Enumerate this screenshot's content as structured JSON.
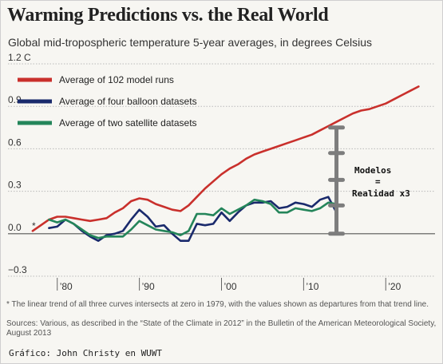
{
  "title": "Warming Predictions vs. the Real World",
  "subtitle": "Global mid-tropospheric temperature 5-year averages, in degrees Celsius",
  "footnote": "* The linear trend of all three curves intersects at zero in 1979, with the values shown as departures from that trend line.",
  "sources": "Sources: Various, as described in the “State of the Climate in 2012” in the Bulletin of the American Meteorological Society, August 2013",
  "credit": "Gráfico: John Christy en WUWT",
  "annotation": {
    "line1": "Modelos",
    "line2": "=",
    "line3": "Realidad x3",
    "marker": "*"
  },
  "colors": {
    "models": "#c9302c",
    "balloons": "#1a2a6c",
    "satellites": "#24855a",
    "bracket": "#7d7d7d"
  },
  "chart_data": {
    "type": "line",
    "title": "Warming Predictions vs. the Real World",
    "ylim": [
      -0.3,
      1.2
    ],
    "xlim": [
      1974,
      2026
    ],
    "ytick_values": [
      -0.3,
      0.0,
      0.3,
      0.6,
      0.9,
      1.2
    ],
    "ytick_labels": [
      "−0.3",
      "0.0",
      "0.3",
      "0.6",
      "0.9",
      "1.2 C"
    ],
    "xtick_values": [
      1980,
      1990,
      2000,
      2010,
      2020
    ],
    "xtick_labels": [
      "’80",
      "’90",
      "’00",
      "’10",
      "’20"
    ],
    "series": [
      {
        "name": "Average of 102 model runs",
        "color": "#c9302c",
        "x": [
          1977,
          1978,
          1979,
          1980,
          1981,
          1982,
          1983,
          1984,
          1985,
          1986,
          1987,
          1988,
          1989,
          1990,
          1991,
          1992,
          1993,
          1994,
          1995,
          1996,
          1997,
          1998,
          1999,
          2000,
          2001,
          2002,
          2003,
          2004,
          2005,
          2006,
          2007,
          2008,
          2009,
          2010,
          2011,
          2012,
          2013,
          2014,
          2015,
          2016,
          2017,
          2018,
          2019,
          2020,
          2021,
          2022,
          2023,
          2024
        ],
        "y": [
          0.02,
          0.06,
          0.1,
          0.12,
          0.12,
          0.11,
          0.1,
          0.09,
          0.1,
          0.11,
          0.15,
          0.18,
          0.23,
          0.25,
          0.24,
          0.21,
          0.19,
          0.17,
          0.16,
          0.2,
          0.26,
          0.32,
          0.37,
          0.42,
          0.46,
          0.49,
          0.53,
          0.56,
          0.58,
          0.6,
          0.62,
          0.64,
          0.66,
          0.68,
          0.7,
          0.73,
          0.76,
          0.79,
          0.82,
          0.85,
          0.87,
          0.88,
          0.9,
          0.92,
          0.95,
          0.98,
          1.01,
          1.04
        ]
      },
      {
        "name": "Average of four balloon datasets",
        "color": "#1a2a6c",
        "x": [
          1979,
          1980,
          1981,
          1982,
          1983,
          1984,
          1985,
          1986,
          1987,
          1988,
          1989,
          1990,
          1991,
          1992,
          1993,
          1994,
          1995,
          1996,
          1997,
          1998,
          1999,
          2000,
          2001,
          2002,
          2003,
          2004,
          2005,
          2006,
          2007,
          2008,
          2009,
          2010,
          2011,
          2012,
          2013,
          2014
        ],
        "y": [
          0.04,
          0.05,
          0.1,
          0.07,
          0.02,
          -0.02,
          -0.05,
          -0.01,
          0.0,
          0.02,
          0.1,
          0.17,
          0.12,
          0.05,
          0.06,
          0.0,
          -0.05,
          -0.05,
          0.07,
          0.06,
          0.07,
          0.15,
          0.09,
          0.15,
          0.2,
          0.22,
          0.22,
          0.23,
          0.18,
          0.19,
          0.22,
          0.21,
          0.19,
          0.24,
          0.26,
          0.15
        ]
      },
      {
        "name": "Average of two satellite datasets",
        "color": "#24855a",
        "x": [
          1979,
          1980,
          1981,
          1982,
          1983,
          1984,
          1985,
          1986,
          1987,
          1988,
          1989,
          1990,
          1991,
          1992,
          1993,
          1994,
          1995,
          1996,
          1997,
          1998,
          1999,
          2000,
          2001,
          2002,
          2003,
          2004,
          2005,
          2006,
          2007,
          2008,
          2009,
          2010,
          2011,
          2012,
          2013,
          2014
        ],
        "y": [
          0.1,
          0.08,
          0.1,
          0.07,
          0.03,
          -0.01,
          -0.03,
          -0.02,
          -0.02,
          -0.02,
          0.03,
          0.09,
          0.06,
          0.03,
          0.02,
          0.01,
          -0.01,
          0.02,
          0.14,
          0.14,
          0.13,
          0.18,
          0.14,
          0.17,
          0.2,
          0.24,
          0.23,
          0.21,
          0.15,
          0.15,
          0.18,
          0.17,
          0.16,
          0.18,
          0.22,
          0.21
        ]
      }
    ],
    "bracket": {
      "x": 2014,
      "y_bottom": 0.0,
      "y_top": 0.75,
      "markers": [
        0.0,
        0.2,
        0.38,
        0.57,
        0.75
      ]
    },
    "grid": true,
    "grid_axis": "y",
    "legend": "top-left"
  }
}
